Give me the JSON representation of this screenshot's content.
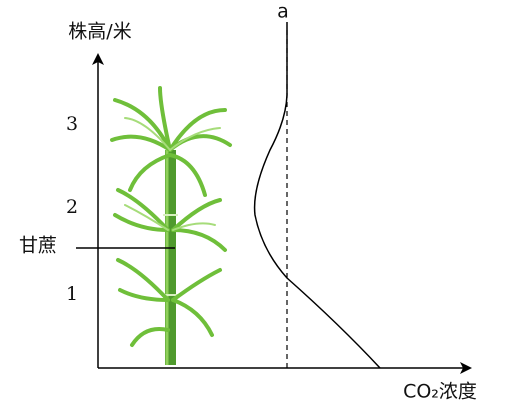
{
  "y_axis": {
    "label": "株高/米",
    "tick_labels": [
      "1",
      "2",
      "3"
    ]
  },
  "x_axis": {
    "label": "CO₂浓度"
  },
  "curve": {
    "label": "a"
  },
  "plant": {
    "label": "甘蔗"
  }
}
